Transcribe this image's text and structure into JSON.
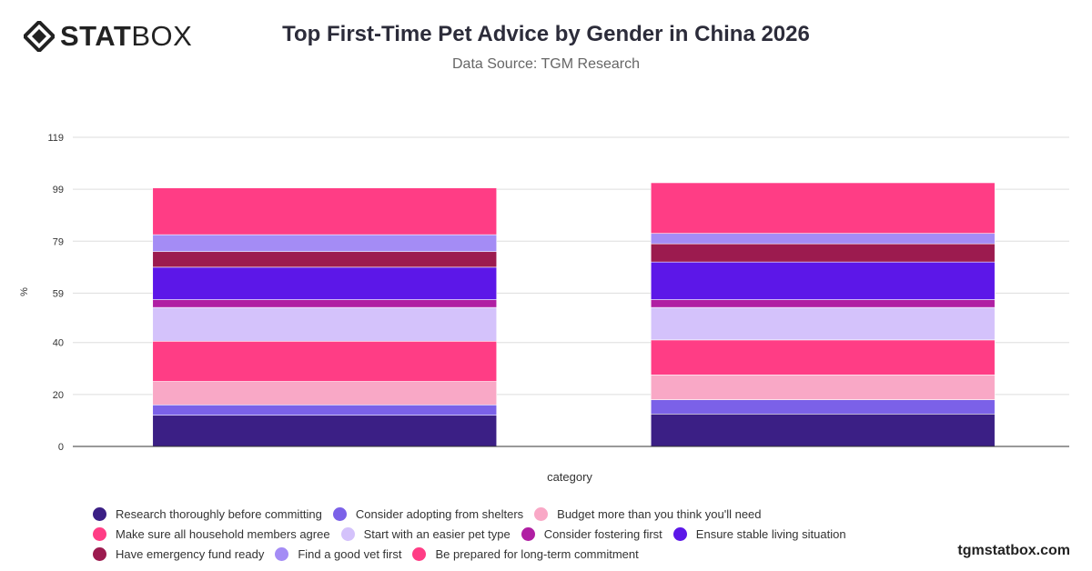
{
  "header": {
    "logo_bold": "STAT",
    "logo_light": "BOX",
    "title": "Top First-Time Pet Advice by Gender in China 2026",
    "subtitle": "Data Source: TGM Research"
  },
  "footer": {
    "watermark": "tgmstatbox.com"
  },
  "chart_data": {
    "type": "bar",
    "stacked": true,
    "title": "Top First-Time Pet Advice by Gender in China 2026",
    "subtitle": "Data Source: TGM Research",
    "xlabel": "category",
    "ylabel": "%",
    "ylim": [
      0,
      119
    ],
    "yticks": [
      0,
      20,
      40,
      59,
      79,
      99,
      119
    ],
    "grid": true,
    "legend_position": "bottom",
    "categories": [
      "",
      ""
    ],
    "series": [
      {
        "name": "Research thoroughly before committing",
        "color": "#3b1f85",
        "values": [
          12,
          12.5
        ]
      },
      {
        "name": "Consider adopting from shelters",
        "color": "#7b61e8",
        "values": [
          4,
          5.5
        ]
      },
      {
        "name": "Budget more than you think you'll need",
        "color": "#f9a8c6",
        "values": [
          9,
          9.5
        ]
      },
      {
        "name": "Make sure all household members agree",
        "color": "#ff3d85",
        "values": [
          15.5,
          13.5
        ]
      },
      {
        "name": "Start with an easier pet type",
        "color": "#d4c2fb",
        "values": [
          13,
          12.5
        ]
      },
      {
        "name": "Consider fostering first",
        "color": "#b01fa3",
        "values": [
          3,
          3
        ]
      },
      {
        "name": "Ensure stable living situation",
        "color": "#5c17e8",
        "values": [
          12.5,
          14.5
        ]
      },
      {
        "name": "Have emergency fund ready",
        "color": "#9c1b4f",
        "values": [
          6,
          7
        ]
      },
      {
        "name": "Find a good vet first",
        "color": "#a48cf5",
        "values": [
          6.5,
          4
        ]
      },
      {
        "name": "Be prepared for long-term commitment",
        "color": "#ff3d85",
        "values": [
          18,
          19.5
        ]
      }
    ]
  }
}
